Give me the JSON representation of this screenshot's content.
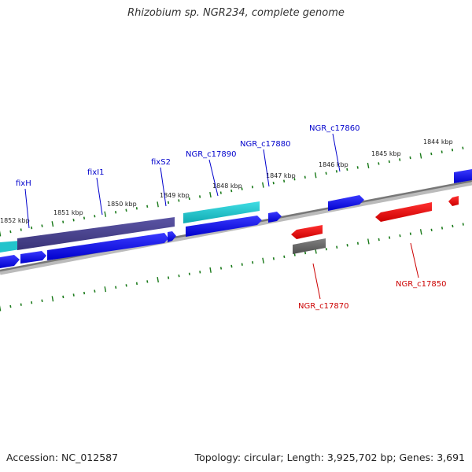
{
  "title": "Rhizobium sp. NGR234, complete genome",
  "footer": {
    "accession": "Accession: NC_012587",
    "summary": "Topology: circular; Length: 3,925,702 bp; Genes: 3,691"
  },
  "scale_labels": [
    "1852 kbp",
    "1851 kbp",
    "1850 kbp",
    "1849 kbp",
    "1848 kbp",
    "1847 kbp",
    "1846 kbp",
    "1845 kbp",
    "1844 kbp"
  ],
  "genes": [
    {
      "name": "fixH",
      "color": "#0000cc"
    },
    {
      "name": "fixI1",
      "color": "#0000cc"
    },
    {
      "name": "fixS2",
      "color": "#0000cc"
    },
    {
      "name": "NGR_c17890",
      "color": "#0000cc"
    },
    {
      "name": "NGR_c17880",
      "color": "#0000cc"
    },
    {
      "name": "NGR_c17860",
      "color": "#0000cc"
    },
    {
      "name": "NGR_c17870",
      "color": "#cc0000"
    },
    {
      "name": "NGR_c17850",
      "color": "#cc0000"
    }
  ],
  "colors": {
    "forward_gene": "#0000ee",
    "reverse_gene": "#ee0000",
    "feature_purple": "#4a4490",
    "feature_cyan": "#22c4cc",
    "feature_gray": "#666666",
    "backbone": "#888888",
    "tick": "#1a7a1a"
  }
}
